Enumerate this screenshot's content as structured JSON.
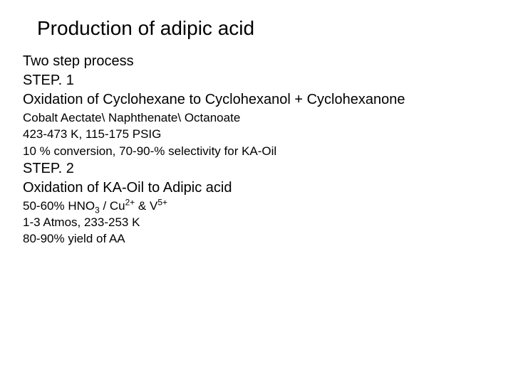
{
  "title": "Production of adipic acid",
  "subhead1": "Two step process",
  "step1": {
    "label": "STEP. 1",
    "desc": "Oxidation of Cyclohexane to Cyclohexanol + Cyclohexanone",
    "line1": "Cobalt Aectate\\ Naphthenate\\ Octanoate",
    "line2": "423-473 K, 115-175 PSIG",
    "line3": "10 % conversion, 70-90-% selectivity for KA-Oil"
  },
  "step2": {
    "label": "STEP. 2",
    "desc": "Oxidation of KA-Oil to Adipic acid",
    "line1_pre": "50-60% HNO",
    "line1_sub": "3",
    "line1_mid1": " / Cu",
    "line1_sup1": "2+",
    "line1_mid2": " & V",
    "line1_sup2": "5+",
    "line2": "1-3 Atmos, 233-253 K",
    "line3": "80-90% yield of AA"
  },
  "colors": {
    "background": "#ffffff",
    "text": "#000000"
  },
  "fonts": {
    "family": "Arial",
    "title_size_pt": 28,
    "subhead_size_pt": 20,
    "detail_size_pt": 17
  }
}
